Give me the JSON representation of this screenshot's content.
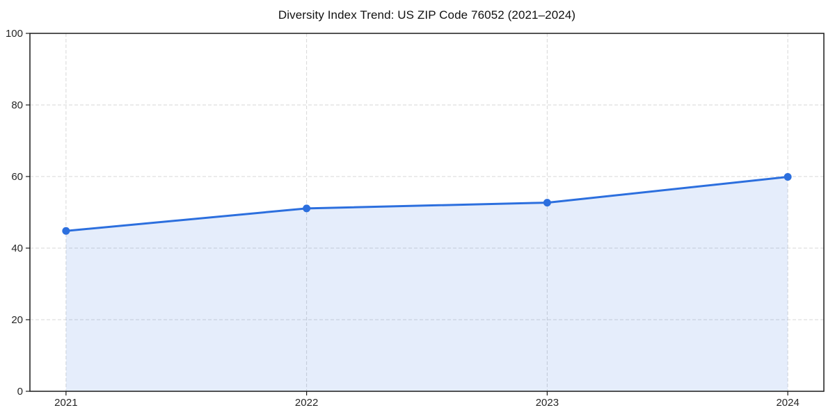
{
  "chart_data": {
    "type": "area",
    "title": "Diversity Index Trend: US ZIP Code 76052 (2021–2024)",
    "x": [
      2021,
      2022,
      2023,
      2024
    ],
    "x_tick_labels": [
      "2021",
      "2022",
      "2023",
      "2024"
    ],
    "y_ticks": [
      0,
      20,
      40,
      60,
      80,
      100
    ],
    "y_tick_labels": [
      "0",
      "20",
      "40",
      "60",
      "80",
      "100"
    ],
    "ylim": [
      0,
      100
    ],
    "series": [
      {
        "name": "Diversity Index",
        "values": [
          44.8,
          51.1,
          52.7,
          59.9
        ]
      }
    ],
    "xlabel": "",
    "ylabel": "",
    "grid": "dashed-both-axes",
    "legend": "none",
    "marker": "circle",
    "colors": {
      "line": "#2c6fde",
      "marker": "#2c6fde",
      "fill": "rgba(44,111,222,0.12)",
      "grid": "#d7d7d7",
      "axis": "#1a1a1a",
      "tick_label": "#262626",
      "title": "#111111",
      "background": "#ffffff"
    }
  }
}
